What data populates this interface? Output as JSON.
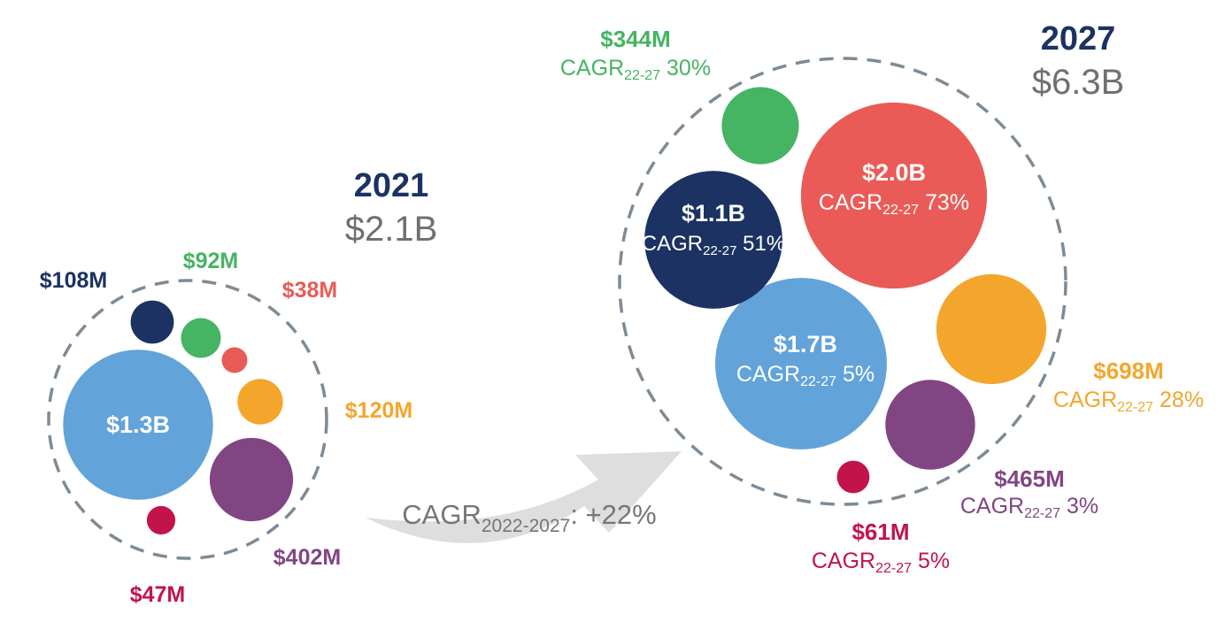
{
  "chart_data": {
    "type": "bubble",
    "colors": {
      "navy": "#1b3262",
      "green": "#45b463",
      "red": "#ea5b57",
      "orange": "#f4a62c",
      "light_blue": "#62a3d9",
      "purple": "#824583",
      "crimson": "#c2144b",
      "arrow": "#dedede",
      "cagr_text": "#767676",
      "total_text": "#707070"
    },
    "groups": [
      {
        "year": "2021",
        "total": "$2.1B",
        "segments": [
          {
            "color": "light_blue",
            "value": 1300,
            "label": "$1.3B",
            "cagr": ""
          },
          {
            "color": "purple",
            "value": 402,
            "label": "$402M",
            "cagr": ""
          },
          {
            "color": "orange",
            "value": 120,
            "label": "$120M",
            "cagr": ""
          },
          {
            "color": "navy",
            "value": 108,
            "label": "$108M",
            "cagr": ""
          },
          {
            "color": "green",
            "value": 92,
            "label": "$92M",
            "cagr": ""
          },
          {
            "color": "crimson",
            "value": 47,
            "label": "$47M",
            "cagr": ""
          },
          {
            "color": "red",
            "value": 38,
            "label": "$38M",
            "cagr": ""
          }
        ]
      },
      {
        "year": "2027",
        "total": "$6.3B",
        "segments": [
          {
            "color": "red",
            "value": 2000,
            "label": "$2.0B",
            "cagr": "73%"
          },
          {
            "color": "light_blue",
            "value": 1700,
            "label": "$1.7B",
            "cagr": "5%"
          },
          {
            "color": "navy",
            "value": 1100,
            "label": "$1.1B",
            "cagr": "51%"
          },
          {
            "color": "orange",
            "value": 698,
            "label": "$698M",
            "cagr": "28%"
          },
          {
            "color": "purple",
            "value": 465,
            "label": "$465M",
            "cagr": "3%"
          },
          {
            "color": "green",
            "value": 344,
            "label": "$344M",
            "cagr": "30%"
          },
          {
            "color": "crimson",
            "value": 61,
            "label": "$61M",
            "cagr": "5%"
          }
        ]
      }
    ],
    "cagr_prefix": "CAGR",
    "segment_cagr_subscript": "22-27",
    "overall_cagr": {
      "prefix": "CAGR",
      "subscript": "2022-2027",
      "suffix": ": +22%"
    }
  }
}
